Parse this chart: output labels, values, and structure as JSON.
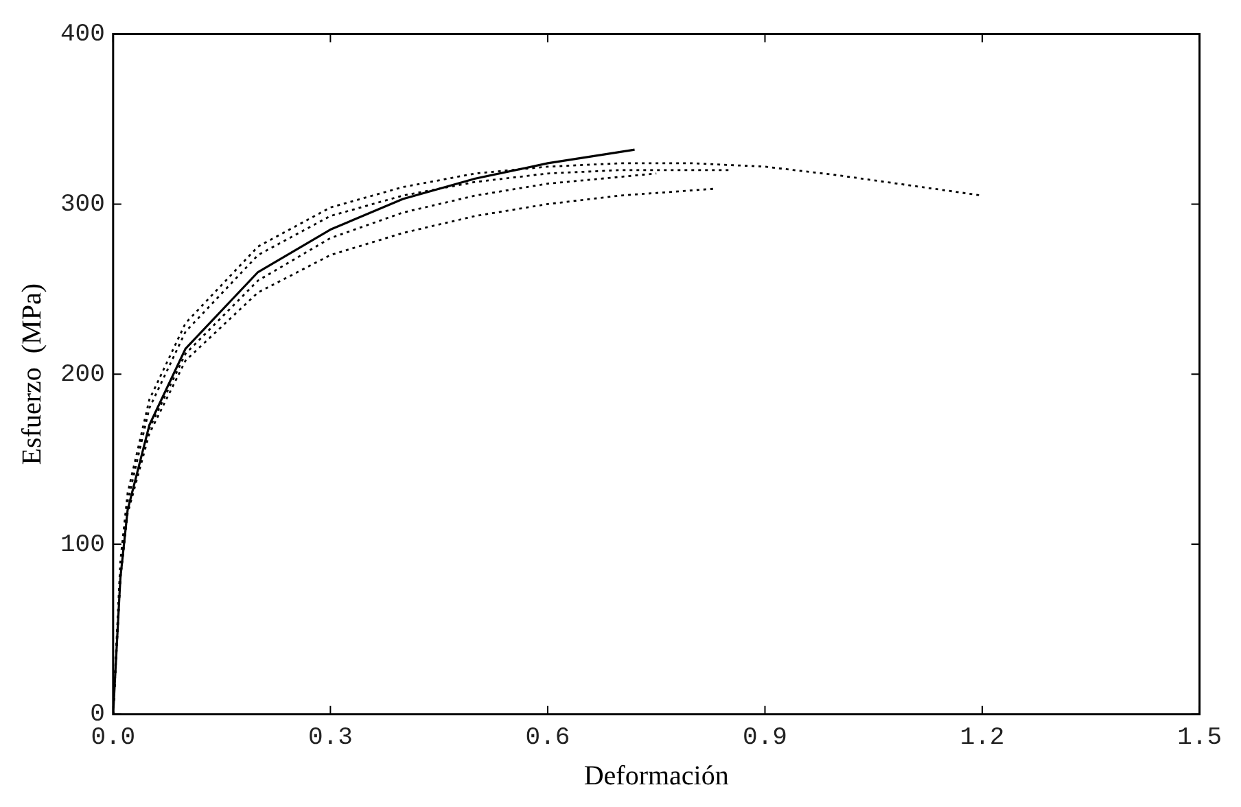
{
  "chart_data": {
    "type": "line",
    "xlabel": "Deformación",
    "ylabel": "Esfuerzo  (MPa)",
    "xlim": [
      0,
      1.5
    ],
    "ylim": [
      0,
      400
    ],
    "xticks": [
      {
        "value": 0,
        "label": "0.0"
      },
      {
        "value": 0.3,
        "label": "0.3"
      },
      {
        "value": 0.6,
        "label": "0.6"
      },
      {
        "value": 0.9,
        "label": "0.9"
      },
      {
        "value": 1.2,
        "label": "1.2"
      },
      {
        "value": 1.5,
        "label": "1.5"
      }
    ],
    "yticks": [
      0,
      100,
      200,
      300,
      400
    ],
    "grid": false,
    "legend": false,
    "marker": "none",
    "series": [
      {
        "color": "#000000",
        "line_style": "solid",
        "x": [
          0,
          0.01,
          0.02,
          0.05,
          0.1,
          0.2,
          0.3,
          0.4,
          0.5,
          0.6,
          0.72
        ],
        "values": [
          0,
          80,
          120,
          170,
          215,
          260,
          285,
          303,
          315,
          324,
          332
        ]
      },
      {
        "color": "#000000",
        "line_style": "dotted",
        "x": [
          0,
          0.01,
          0.02,
          0.05,
          0.1,
          0.2,
          0.3,
          0.4,
          0.5,
          0.6,
          0.7,
          0.8,
          0.9,
          1.0,
          1.1,
          1.2
        ],
        "values": [
          0,
          90,
          130,
          185,
          230,
          275,
          298,
          310,
          318,
          322,
          324,
          324,
          322,
          317,
          311,
          305
        ]
      },
      {
        "color": "#000000",
        "line_style": "dotted",
        "x": [
          0,
          0.01,
          0.02,
          0.05,
          0.1,
          0.2,
          0.3,
          0.4,
          0.5,
          0.6,
          0.7,
          0.85
        ],
        "values": [
          0,
          85,
          125,
          180,
          225,
          270,
          293,
          305,
          313,
          318,
          320,
          320
        ]
      },
      {
        "color": "#000000",
        "line_style": "dotted",
        "x": [
          0,
          0.01,
          0.02,
          0.05,
          0.1,
          0.2,
          0.3,
          0.4,
          0.5,
          0.6,
          0.75
        ],
        "values": [
          0,
          80,
          120,
          168,
          212,
          255,
          280,
          295,
          305,
          312,
          318
        ]
      },
      {
        "color": "#000000",
        "line_style": "dotted",
        "x": [
          0,
          0.01,
          0.02,
          0.05,
          0.1,
          0.2,
          0.3,
          0.4,
          0.5,
          0.6,
          0.7,
          0.83
        ],
        "values": [
          0,
          80,
          118,
          165,
          208,
          248,
          270,
          283,
          293,
          300,
          305,
          309
        ]
      }
    ]
  }
}
